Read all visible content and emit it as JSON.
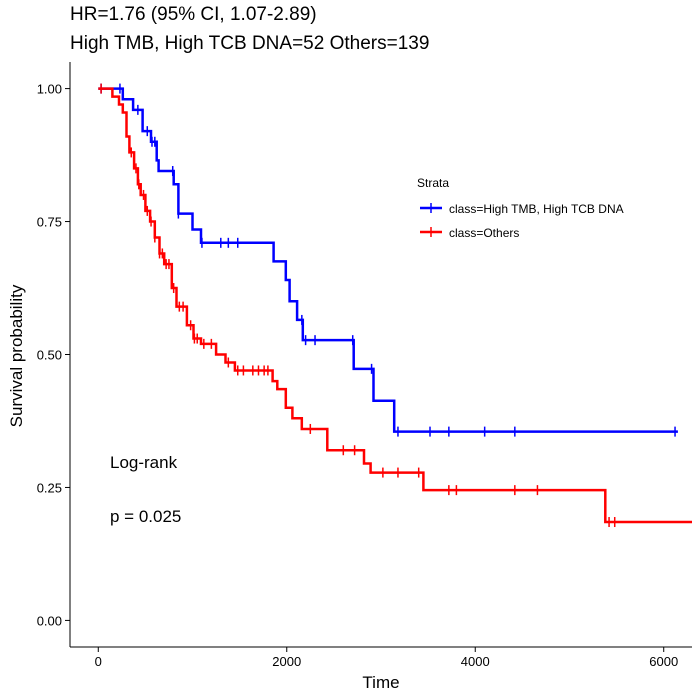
{
  "title_line1": "HR=1.76 (95% CI, 1.07-2.89)",
  "title_line2": "High TMB, High TCB DNA=52 Others=139",
  "chart_data": {
    "type": "line",
    "xlabel": "Time",
    "ylabel": "Survival probability",
    "xlim": [
      -300,
      6300
    ],
    "ylim": [
      -0.05,
      1.05
    ],
    "x_ticks": [
      0,
      2000,
      4000,
      6000
    ],
    "x_tick_labels": [
      "0",
      "2000",
      "4000",
      "6000"
    ],
    "y_ticks": [
      0,
      0.25,
      0.5,
      0.75,
      1.0
    ],
    "y_tick_labels": [
      "0.00",
      "0.25",
      "0.50",
      "0.75",
      "1.00"
    ],
    "grid": false,
    "legend": {
      "title": "Strata",
      "position": "right"
    },
    "annotations": [
      "Log-rank",
      "p = 0.025"
    ],
    "series": [
      {
        "name": "class=High TMB, High TCB DNA",
        "color": "#0000ff",
        "step": [
          [
            0,
            1.0
          ],
          [
            260,
            1.0
          ],
          [
            260,
            0.98
          ],
          [
            370,
            0.98
          ],
          [
            370,
            0.96
          ],
          [
            470,
            0.96
          ],
          [
            470,
            0.92
          ],
          [
            560,
            0.92
          ],
          [
            560,
            0.9
          ],
          [
            620,
            0.9
          ],
          [
            620,
            0.865
          ],
          [
            640,
            0.865
          ],
          [
            640,
            0.845
          ],
          [
            800,
            0.845
          ],
          [
            800,
            0.82
          ],
          [
            850,
            0.82
          ],
          [
            850,
            0.765
          ],
          [
            1000,
            0.765
          ],
          [
            1000,
            0.735
          ],
          [
            1090,
            0.735
          ],
          [
            1090,
            0.71
          ],
          [
            1860,
            0.71
          ],
          [
            1860,
            0.675
          ],
          [
            1990,
            0.675
          ],
          [
            1990,
            0.64
          ],
          [
            2030,
            0.64
          ],
          [
            2030,
            0.6
          ],
          [
            2110,
            0.6
          ],
          [
            2110,
            0.565
          ],
          [
            2170,
            0.565
          ],
          [
            2170,
            0.527
          ],
          [
            2710,
            0.527
          ],
          [
            2710,
            0.473
          ],
          [
            2920,
            0.473
          ],
          [
            2920,
            0.413
          ],
          [
            3140,
            0.413
          ],
          [
            3140,
            0.355
          ],
          [
            6150,
            0.355
          ]
        ],
        "censor_x": [
          30,
          230,
          420,
          520,
          570,
          600,
          790,
          850,
          1100,
          1300,
          1380,
          1480,
          2160,
          2200,
          2300,
          2700,
          2900,
          3180,
          3520,
          3720,
          4100,
          4420,
          6120
        ]
      },
      {
        "name": "class=Others",
        "color": "#ff0000",
        "step": [
          [
            0,
            1.0
          ],
          [
            150,
            1.0
          ],
          [
            150,
            0.985
          ],
          [
            220,
            0.985
          ],
          [
            220,
            0.97
          ],
          [
            260,
            0.97
          ],
          [
            260,
            0.955
          ],
          [
            300,
            0.955
          ],
          [
            300,
            0.91
          ],
          [
            330,
            0.91
          ],
          [
            330,
            0.88
          ],
          [
            380,
            0.88
          ],
          [
            380,
            0.85
          ],
          [
            420,
            0.85
          ],
          [
            420,
            0.82
          ],
          [
            450,
            0.82
          ],
          [
            450,
            0.8
          ],
          [
            500,
            0.8
          ],
          [
            500,
            0.77
          ],
          [
            550,
            0.77
          ],
          [
            550,
            0.75
          ],
          [
            600,
            0.75
          ],
          [
            600,
            0.72
          ],
          [
            650,
            0.72
          ],
          [
            650,
            0.69
          ],
          [
            700,
            0.69
          ],
          [
            700,
            0.67
          ],
          [
            780,
            0.67
          ],
          [
            780,
            0.625
          ],
          [
            830,
            0.625
          ],
          [
            830,
            0.59
          ],
          [
            940,
            0.59
          ],
          [
            940,
            0.555
          ],
          [
            1010,
            0.555
          ],
          [
            1010,
            0.53
          ],
          [
            1090,
            0.53
          ],
          [
            1090,
            0.52
          ],
          [
            1250,
            0.52
          ],
          [
            1250,
            0.5
          ],
          [
            1350,
            0.5
          ],
          [
            1350,
            0.485
          ],
          [
            1450,
            0.485
          ],
          [
            1450,
            0.47
          ],
          [
            1850,
            0.47
          ],
          [
            1850,
            0.45
          ],
          [
            1900,
            0.45
          ],
          [
            1900,
            0.435
          ],
          [
            1990,
            0.435
          ],
          [
            1990,
            0.4
          ],
          [
            2060,
            0.4
          ],
          [
            2060,
            0.38
          ],
          [
            2160,
            0.38
          ],
          [
            2160,
            0.36
          ],
          [
            2430,
            0.36
          ],
          [
            2430,
            0.32
          ],
          [
            2820,
            0.32
          ],
          [
            2820,
            0.295
          ],
          [
            2890,
            0.295
          ],
          [
            2890,
            0.278
          ],
          [
            3450,
            0.278
          ],
          [
            3450,
            0.245
          ],
          [
            5380,
            0.245
          ],
          [
            5380,
            0.185
          ],
          [
            6300,
            0.185
          ]
        ],
        "censor_x": [
          30,
          350,
          400,
          430,
          480,
          520,
          560,
          600,
          650,
          680,
          720,
          750,
          800,
          860,
          900,
          980,
          1020,
          1050,
          1120,
          1200,
          1380,
          1480,
          1540,
          1640,
          1700,
          1760,
          1800,
          2250,
          2600,
          2720,
          3020,
          3180,
          3400,
          3720,
          3800,
          4420,
          4660,
          5420,
          5480
        ]
      }
    ]
  }
}
